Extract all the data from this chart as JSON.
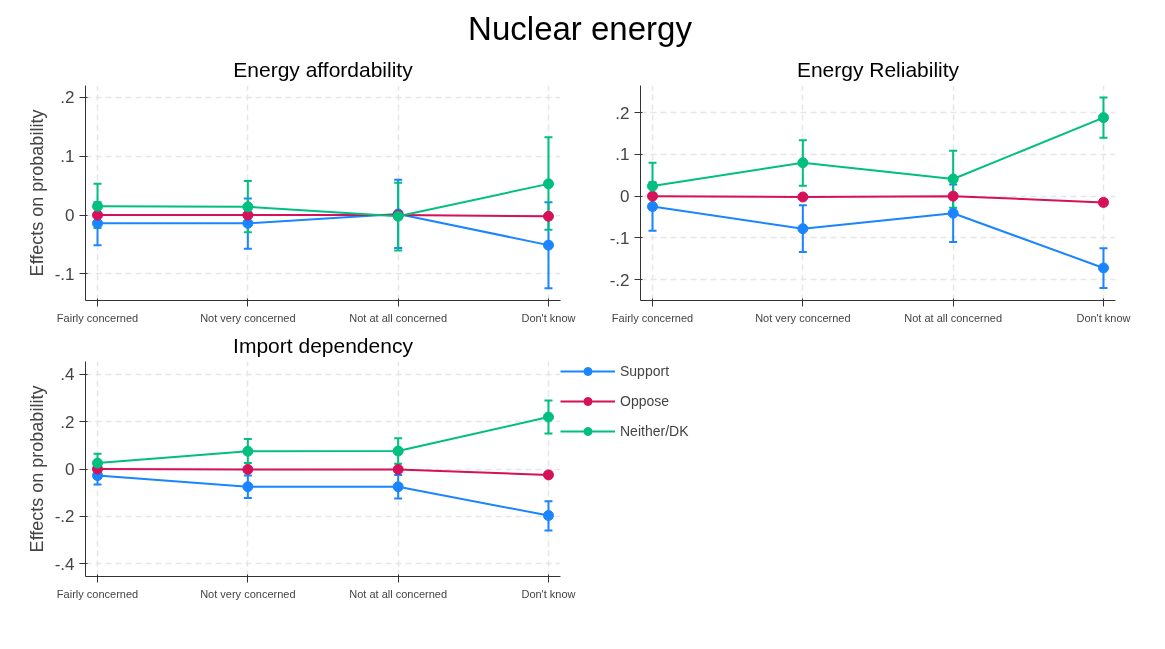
{
  "chart_data": [
    {
      "type": "other",
      "title": "Nuclear energy"
    },
    {
      "type": "line",
      "title": "Energy affordability",
      "ylabel": "Effects on probability",
      "categories": [
        "Fairly concerned",
        "Not very concerned",
        "Not at all concerned",
        "Don't know"
      ],
      "ylim": [
        -0.145,
        0.22
      ],
      "yticks": [
        {
          "value": -0.1,
          "label": "-.1"
        },
        0,
        {
          "value": 0.1,
          "label": ".1"
        },
        {
          "value": 0.2,
          "label": ".2"
        }
      ],
      "grid": true,
      "marker": "circle",
      "series": [
        {
          "color": "#1a85ff",
          "values": [
            -0.014,
            -0.014,
            0.002,
            -0.051
          ],
          "errors": [
            [
              -0.051,
              0.022
            ],
            [
              -0.057,
              0.028
            ],
            [
              -0.056,
              0.06
            ],
            [
              -0.124,
              0.022
            ]
          ]
        },
        {
          "color": "#d41159",
          "values": [
            0,
            0,
            0,
            -0.002
          ]
        },
        {
          "color": "#00bf7f",
          "values": [
            0.015,
            0.014,
            -0.002,
            0.053
          ],
          "errors": [
            [
              -0.022,
              0.053
            ],
            [
              -0.029,
              0.058
            ],
            [
              -0.06,
              0.055
            ],
            [
              -0.025,
              0.132
            ]
          ]
        }
      ]
    },
    {
      "type": "line",
      "title": "Energy Reliability",
      "categories": [
        "Fairly concerned",
        "Not very concerned",
        "Not at all concerned",
        "Don't know"
      ],
      "ylim": [
        -0.25,
        0.265
      ],
      "yticks": [
        {
          "value": -0.2,
          "label": "-.2"
        },
        {
          "value": -0.1,
          "label": "-.1"
        },
        0,
        {
          "value": 0.1,
          "label": ".1"
        },
        {
          "value": 0.2,
          "label": ".2"
        }
      ],
      "grid": true,
      "marker": "circle",
      "series": [
        {
          "color": "#1a85ff",
          "values": [
            -0.025,
            -0.078,
            -0.041,
            -0.172
          ],
          "errors": [
            [
              -0.083,
              0.033
            ],
            [
              -0.134,
              -0.022
            ],
            [
              -0.11,
              0.028
            ],
            [
              -0.22,
              -0.125
            ]
          ]
        },
        {
          "color": "#d41159",
          "values": [
            0,
            -0.002,
            0,
            -0.015
          ],
          "errors": [
            null,
            null,
            null,
            [
              -0.022,
              -0.008
            ]
          ]
        },
        {
          "color": "#00bf7f",
          "values": [
            0.024,
            0.08,
            0.041,
            0.188
          ],
          "errors": [
            [
              -0.03,
              0.08
            ],
            [
              0.025,
              0.134
            ],
            [
              -0.028,
              0.109
            ],
            [
              0.14,
              0.236
            ]
          ]
        }
      ]
    },
    {
      "type": "line",
      "title": "Import dependency",
      "ylabel": "Effects on probability",
      "categories": [
        "Fairly concerned",
        "Not very concerned",
        "Not at all concerned",
        "Don't know"
      ],
      "ylim": [
        -0.455,
        0.455
      ],
      "yticks": [
        {
          "value": -0.4,
          "label": "-.4"
        },
        {
          "value": -0.2,
          "label": "-.2"
        },
        0,
        {
          "value": 0.2,
          "label": ".2"
        },
        {
          "value": 0.4,
          "label": ".4"
        }
      ],
      "grid": true,
      "marker": "circle",
      "legend": "right",
      "series": [
        {
          "name": "Support",
          "color": "#1a85ff",
          "values": [
            -0.028,
            -0.075,
            -0.075,
            -0.197
          ],
          "errors": [
            [
              -0.066,
              0.01
            ],
            [
              -0.123,
              -0.027
            ],
            [
              -0.125,
              -0.025
            ],
            [
              -0.26,
              -0.136
            ]
          ]
        },
        {
          "name": "Oppose",
          "color": "#d41159",
          "values": [
            0,
            -0.002,
            -0.002,
            -0.025
          ]
        },
        {
          "name": "Neither/DK",
          "color": "#00bf7f",
          "values": [
            0.025,
            0.075,
            0.076,
            0.22
          ],
          "errors": [
            [
              -0.015,
              0.065
            ],
            [
              0.025,
              0.127
            ],
            [
              0.022,
              0.13
            ],
            [
              0.15,
              0.29
            ]
          ]
        }
      ]
    }
  ]
}
